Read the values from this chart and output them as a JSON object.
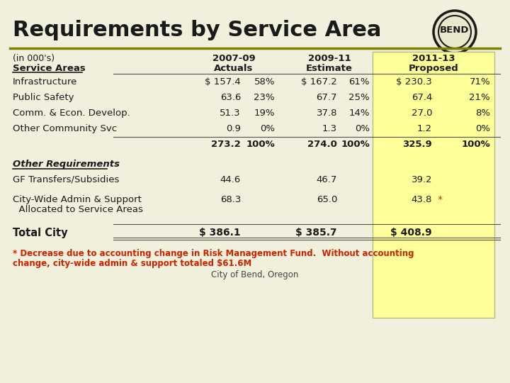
{
  "title": "Requirements by Service Area",
  "bg_color": "#f0f0dc",
  "title_color": "#1a1a1a",
  "olive_line_color": "#808000",
  "yellow_bg": "#ffff99",
  "header_in_000s": "(in 000's)",
  "header_service_areas": "Service Areas",
  "col_headers_line1": [
    "2007-09",
    "2009-11",
    "2011-13"
  ],
  "col_headers_line2": [
    "Actuals",
    "Estimate",
    "Proposed"
  ],
  "service_rows": [
    {
      "label": "Infrastructure",
      "v1": "$ 157.4",
      "p1": "58%",
      "v2": "$ 167.2",
      "p2": "61%",
      "v3": "$ 230.3",
      "p3": "71%"
    },
    {
      "label": "Public Safety",
      "v1": "63.6",
      "p1": "23%",
      "v2": "67.7",
      "p2": "25%",
      "v3": "67.4",
      "p3": "21%"
    },
    {
      "label": "Comm. & Econ. Develop.",
      "v1": "51.3",
      "p1": "19%",
      "v2": "37.8",
      "p2": "14%",
      "v3": "27.0",
      "p3": "8%"
    },
    {
      "label": "Other Community Svc",
      "v1": "0.9",
      "p1": "0%",
      "v2": "1.3",
      "p2": "0%",
      "v3": "1.2",
      "p3": "0%"
    }
  ],
  "subtotal_row": {
    "v1": "273.2",
    "p1": "100%",
    "v2": "274.0",
    "p2": "100%",
    "v3": "325.9",
    "p3": "100%"
  },
  "other_req_label": "Other Requirements",
  "other_rows": [
    {
      "label": "GF Transfers/Subsidies",
      "label2": "",
      "v1": "44.6",
      "v2": "46.7",
      "v3": "39.2",
      "star": false
    },
    {
      "label": "City-Wide Admin & Support",
      "label2": "  Allocated to Service Areas",
      "v1": "68.3",
      "v2": "65.0",
      "v3": "43.8",
      "star": true
    }
  ],
  "total_row": {
    "label": "Total City",
    "v1": "$ 386.1",
    "v2": "$ 385.7",
    "v3": "$ 408.9"
  },
  "footnote_line1": "* Decrease due to accounting change in Risk Management Fund.  Without accounting",
  "footnote_line2": "change, city-wide admin & support totaled $61.6M",
  "footnote_color": "#cc2200",
  "city_label": "City of Bend, Oregon"
}
